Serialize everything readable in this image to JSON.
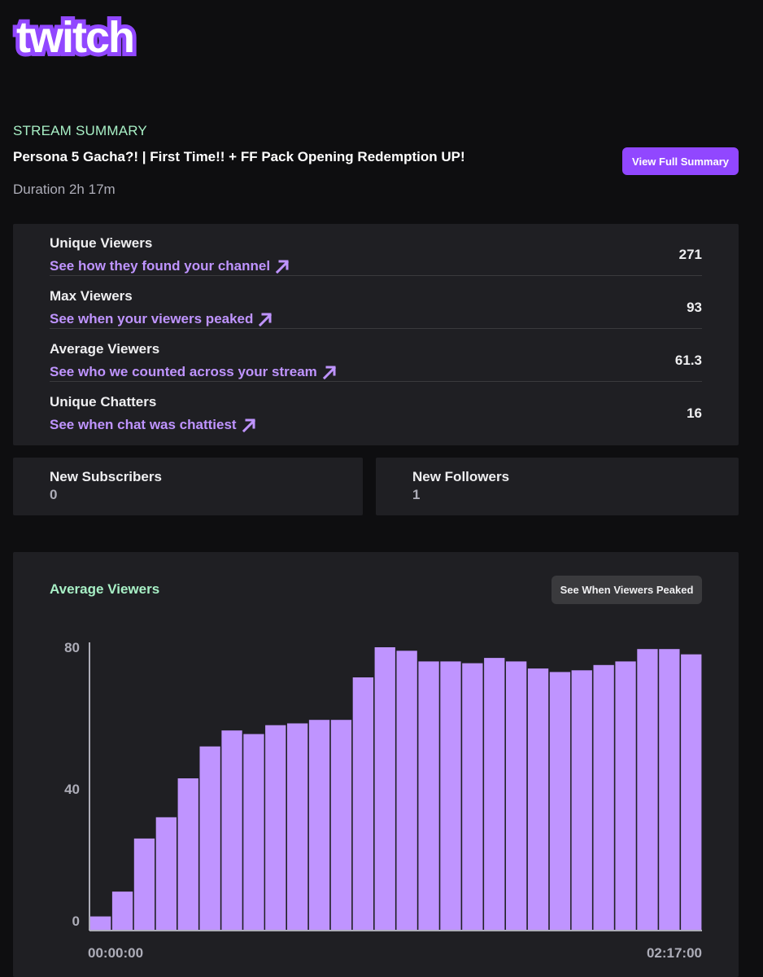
{
  "brand": {
    "logo_text": "twitch",
    "accent": "#9147ff",
    "logo_color": "#9147ff"
  },
  "summary": {
    "section_label": "STREAM SUMMARY",
    "title": "Persona 5 Gacha?! | First Time!! + FF Pack Opening Redemption UP!",
    "duration": "Duration 2h 17m",
    "view_full_label": "View Full Summary"
  },
  "stats": [
    {
      "name": "Unique Viewers",
      "link": "See how they found your channel",
      "value": "271",
      "icon": "arrow-up-right-icon"
    },
    {
      "name": "Max Viewers",
      "link": "See when your viewers peaked",
      "value": "93",
      "icon": "arrow-up-right-icon"
    },
    {
      "name": "Average Viewers",
      "link": "See who we counted across your stream",
      "value": "61.3",
      "icon": "arrow-up-right-icon"
    },
    {
      "name": "Unique Chatters",
      "link": "See when chat was chattiest",
      "value": "16",
      "icon": "arrow-up-right-icon"
    }
  ],
  "subscribers": {
    "label": "New Subscribers",
    "value": "0"
  },
  "followers": {
    "label": "New Followers",
    "value": "1"
  },
  "chart_section": {
    "title": "Average Viewers",
    "button_label": "See When Viewers Peaked"
  },
  "chart_data": {
    "type": "bar",
    "title": "Average Viewers",
    "xlabel": "",
    "ylabel": "",
    "ylim": [
      0,
      80
    ],
    "yticks": [
      0,
      40,
      80
    ],
    "ytick_labels": [
      "0",
      "40",
      "80"
    ],
    "x_start_label": "00:00:00",
    "x_end_label": "02:17:00",
    "bar_color": "#bf94ff",
    "grid": false,
    "values": [
      4,
      11,
      26,
      32,
      43,
      52,
      56.5,
      55.5,
      58,
      58.5,
      59.5,
      59.5,
      71.5,
      80,
      79,
      76,
      76,
      75.5,
      77,
      76,
      74,
      73,
      73.5,
      75,
      76,
      79.5,
      79.5,
      78
    ]
  },
  "colors": {
    "background": "#0e0e10",
    "card": "#1f1f23",
    "link": "#bf94ff",
    "green_label": "#a8f0c6"
  }
}
